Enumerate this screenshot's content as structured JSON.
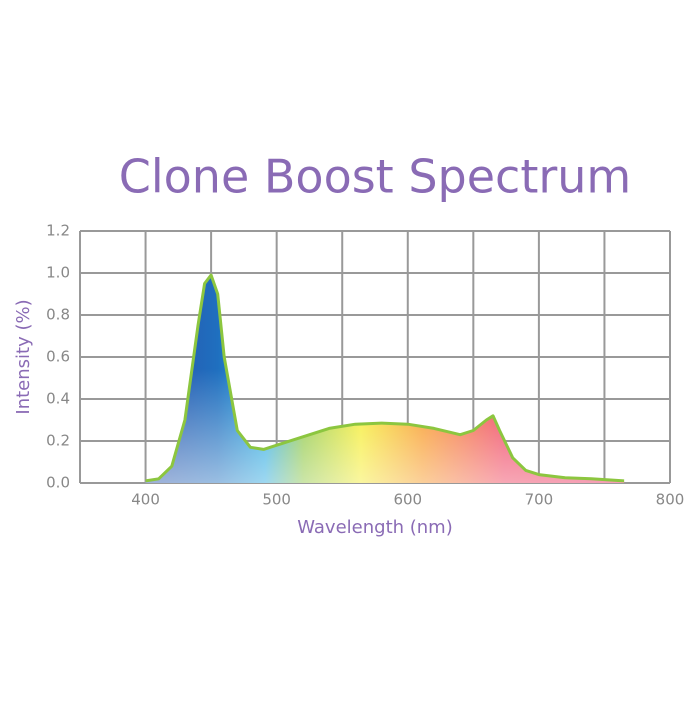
{
  "chart_data": {
    "type": "area",
    "title": "Clone Boost Spectrum",
    "xlabel": "Wavelength (nm)",
    "ylabel": "Intensity (%)",
    "x": [
      400,
      410,
      420,
      430,
      440,
      445,
      450,
      455,
      460,
      470,
      480,
      490,
      500,
      520,
      540,
      560,
      580,
      600,
      620,
      640,
      650,
      660,
      665,
      670,
      680,
      690,
      700,
      720,
      740,
      765
    ],
    "values": [
      0.01,
      0.02,
      0.08,
      0.3,
      0.75,
      0.95,
      0.99,
      0.9,
      0.6,
      0.25,
      0.17,
      0.16,
      0.18,
      0.22,
      0.26,
      0.28,
      0.285,
      0.28,
      0.26,
      0.23,
      0.25,
      0.3,
      0.32,
      0.25,
      0.12,
      0.06,
      0.04,
      0.025,
      0.02,
      0.01
    ],
    "line_color": "#8cc63f",
    "title_color": "#8a6bb5",
    "xlim": [
      350,
      800
    ],
    "ylim": [
      0,
      1.2
    ],
    "xticks": [
      400,
      500,
      600,
      700,
      800
    ],
    "xgrid": [
      350,
      400,
      450,
      500,
      550,
      600,
      650,
      700,
      750,
      800
    ],
    "yticks": [
      {
        "value": 0,
        "label": "0.0"
      },
      0.2,
      0.4,
      0.6,
      0.8,
      {
        "value": 1,
        "label": "1.0"
      },
      1.2
    ],
    "grid": true
  }
}
